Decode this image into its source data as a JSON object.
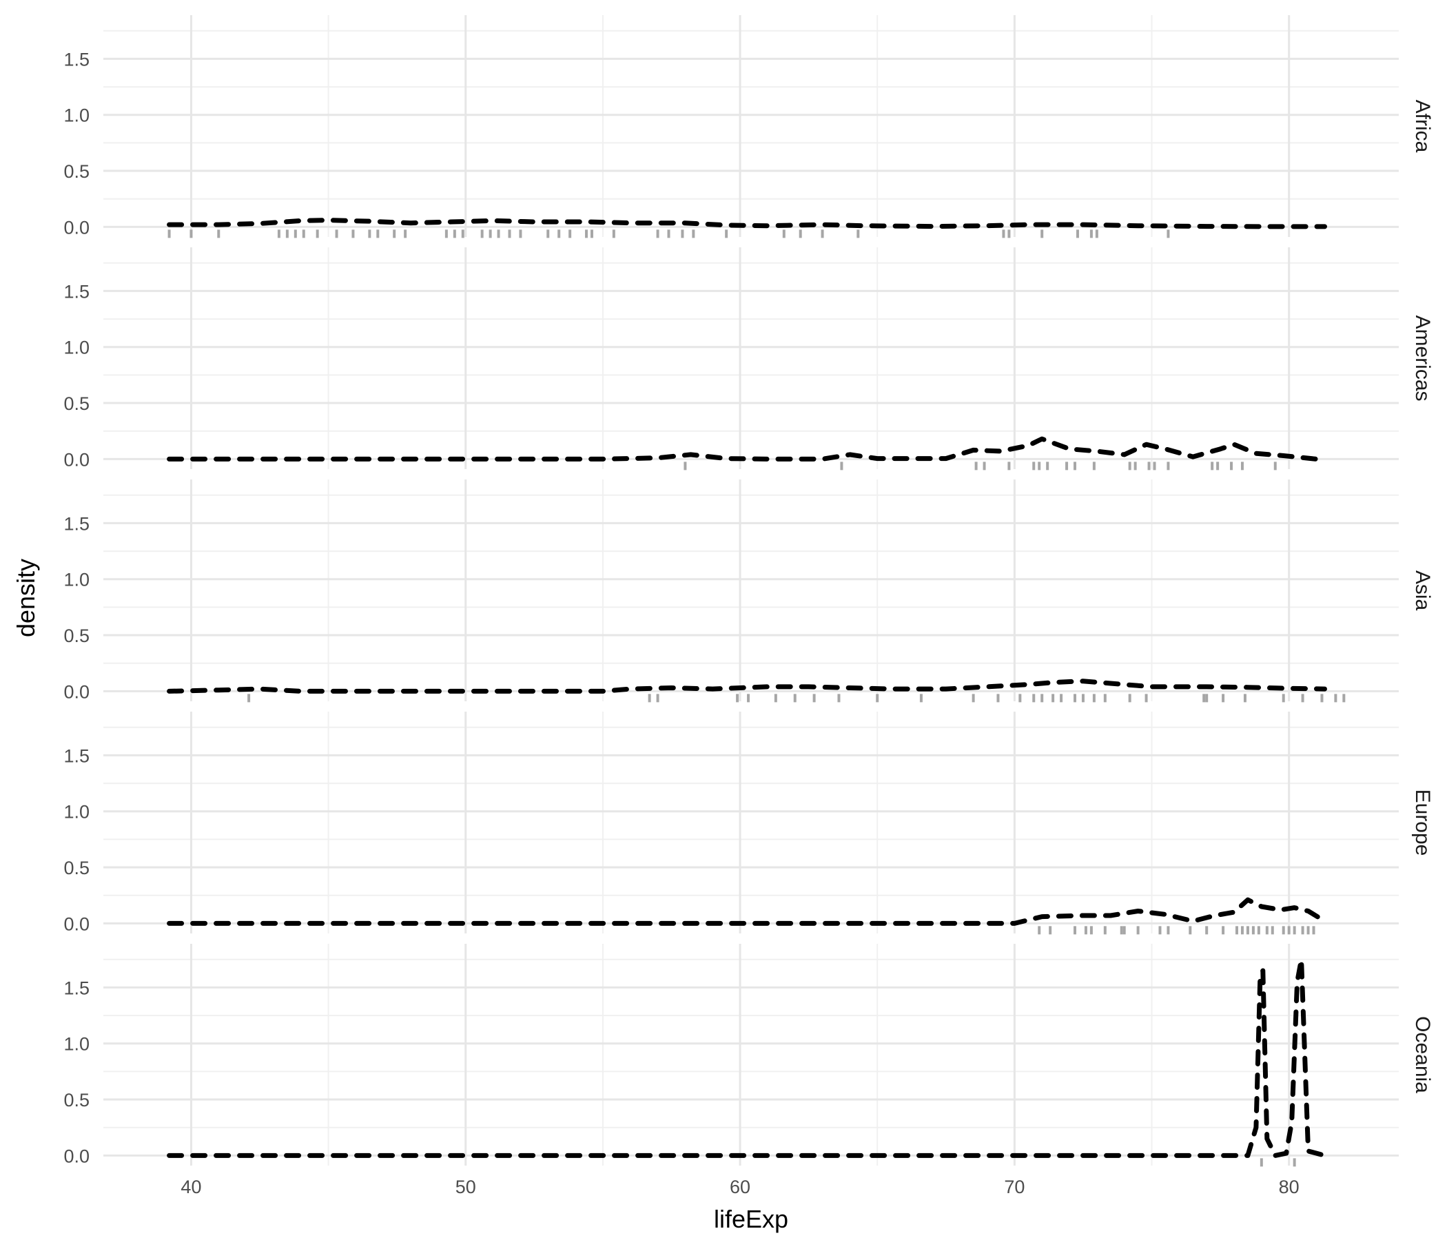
{
  "chart_data": {
    "type": "density",
    "xlabel": "lifeExp",
    "ylabel": "density",
    "xlim": [
      36.8,
      84.0
    ],
    "ylim": [
      -0.09,
      1.89
    ],
    "x_ticks": [
      40,
      50,
      60,
      70,
      80
    ],
    "x_tick_labels": [
      "40",
      "50",
      "60",
      "70",
      "80"
    ],
    "y_ticks": [
      0.0,
      0.5,
      1.0,
      1.5
    ],
    "y_tick_labels": [
      "0.0",
      "0.5",
      "1.0",
      "1.5"
    ],
    "facet_direction": "rows",
    "grid": true,
    "line_style": "dashed",
    "line_color": "#000000",
    "rug_color": "#a6a6a6",
    "panels": [
      {
        "label": "Africa",
        "density": [
          [
            39.2,
            0.02
          ],
          [
            41,
            0.02
          ],
          [
            42.5,
            0.03
          ],
          [
            44,
            0.055
          ],
          [
            45,
            0.06
          ],
          [
            46.5,
            0.05
          ],
          [
            48,
            0.035
          ],
          [
            49.5,
            0.045
          ],
          [
            51,
            0.055
          ],
          [
            52.5,
            0.045
          ],
          [
            54.5,
            0.045
          ],
          [
            56,
            0.035
          ],
          [
            58,
            0.035
          ],
          [
            59.5,
            0.015
          ],
          [
            61,
            0.01
          ],
          [
            63,
            0.02
          ],
          [
            64.5,
            0.01
          ],
          [
            67,
            0.005
          ],
          [
            69,
            0.01
          ],
          [
            70.5,
            0.02
          ],
          [
            72.5,
            0.02
          ],
          [
            74.5,
            0.01
          ],
          [
            77,
            0.005
          ],
          [
            79.5,
            0.003
          ],
          [
            81.3,
            0.003
          ]
        ],
        "rug": [
          39.2,
          40.0,
          41.0,
          43.2,
          43.5,
          43.8,
          44.1,
          44.6,
          45.3,
          45.9,
          46.5,
          46.8,
          47.4,
          47.8,
          49.3,
          49.6,
          49.9,
          50.6,
          50.9,
          51.2,
          51.6,
          52.0,
          53.0,
          53.4,
          53.8,
          54.4,
          54.6,
          55.4,
          57.0,
          57.4,
          57.9,
          58.3,
          59.5,
          61.6,
          62.2,
          63.0,
          64.3,
          69.6,
          69.8,
          71.0,
          72.3,
          72.8,
          73.0,
          75.6
        ]
      },
      {
        "label": "Americas",
        "density": [
          [
            39.2,
            0.0
          ],
          [
            46,
            0.0
          ],
          [
            55,
            0.0
          ],
          [
            57,
            0.01
          ],
          [
            58.2,
            0.04
          ],
          [
            59.5,
            0.005
          ],
          [
            61,
            0.0
          ],
          [
            63,
            0.0
          ],
          [
            64,
            0.04
          ],
          [
            65,
            0.005
          ],
          [
            67.5,
            0.005
          ],
          [
            68.5,
            0.08
          ],
          [
            69.5,
            0.07
          ],
          [
            70.5,
            0.12
          ],
          [
            71,
            0.18
          ],
          [
            72,
            0.09
          ],
          [
            73,
            0.07
          ],
          [
            74,
            0.04
          ],
          [
            74.8,
            0.13
          ],
          [
            75.5,
            0.09
          ],
          [
            76.5,
            0.02
          ],
          [
            77.5,
            0.09
          ],
          [
            78,
            0.13
          ],
          [
            78.8,
            0.05
          ],
          [
            79.8,
            0.03
          ],
          [
            81,
            0.0
          ],
          [
            81.3,
            0.0
          ]
        ],
        "rug": [
          58.0,
          63.7,
          68.6,
          68.9,
          69.8,
          70.7,
          70.9,
          71.2,
          71.9,
          72.2,
          72.9,
          74.2,
          74.4,
          74.9,
          75.1,
          75.6,
          77.2,
          77.4,
          77.9,
          78.3,
          79.5
        ]
      },
      {
        "label": "Asia",
        "density": [
          [
            39.2,
            0.0
          ],
          [
            41,
            0.01
          ],
          [
            42.5,
            0.02
          ],
          [
            44,
            0.0
          ],
          [
            50,
            0.0
          ],
          [
            55,
            0.0
          ],
          [
            56,
            0.02
          ],
          [
            57.5,
            0.03
          ],
          [
            59,
            0.02
          ],
          [
            60,
            0.03
          ],
          [
            61,
            0.04
          ],
          [
            62.5,
            0.04
          ],
          [
            64,
            0.03
          ],
          [
            65.5,
            0.02
          ],
          [
            67.5,
            0.02
          ],
          [
            69,
            0.04
          ],
          [
            70.5,
            0.06
          ],
          [
            71.5,
            0.08
          ],
          [
            72.5,
            0.09
          ],
          [
            73.5,
            0.07
          ],
          [
            75,
            0.04
          ],
          [
            77,
            0.04
          ],
          [
            78.5,
            0.035
          ],
          [
            80,
            0.025
          ],
          [
            81.3,
            0.02
          ]
        ],
        "rug": [
          42.1,
          56.7,
          57.0,
          59.9,
          60.3,
          61.3,
          62.0,
          62.7,
          63.6,
          65.0,
          66.6,
          68.5,
          69.4,
          70.2,
          70.7,
          71.0,
          71.4,
          71.7,
          72.2,
          72.5,
          72.9,
          73.3,
          74.2,
          74.8,
          76.9,
          77.0,
          77.6,
          78.4,
          79.8,
          80.5,
          81.2,
          81.7,
          82.0
        ]
      },
      {
        "label": "Europe",
        "density": [
          [
            39.2,
            0.0
          ],
          [
            50,
            0.0
          ],
          [
            60,
            0.0
          ],
          [
            68,
            0.0
          ],
          [
            70,
            0.0
          ],
          [
            71,
            0.06
          ],
          [
            72.5,
            0.07
          ],
          [
            73.5,
            0.07
          ],
          [
            74.5,
            0.11
          ],
          [
            75.5,
            0.08
          ],
          [
            76.5,
            0.02
          ],
          [
            77.3,
            0.07
          ],
          [
            78,
            0.1
          ],
          [
            78.5,
            0.21
          ],
          [
            79,
            0.15
          ],
          [
            79.7,
            0.12
          ],
          [
            80.2,
            0.14
          ],
          [
            80.7,
            0.11
          ],
          [
            81.3,
            0.02
          ]
        ],
        "rug": [
          70.9,
          71.3,
          72.2,
          72.6,
          72.8,
          73.3,
          73.9,
          74.0,
          74.5,
          75.3,
          75.6,
          76.4,
          77.0,
          77.6,
          78.1,
          78.3,
          78.5,
          78.7,
          78.9,
          79.2,
          79.4,
          79.8,
          80.0,
          80.2,
          80.5,
          80.7,
          80.9
        ]
      },
      {
        "label": "Oceania",
        "density": [
          [
            39.2,
            0.0
          ],
          [
            60,
            0.0
          ],
          [
            70,
            0.0
          ],
          [
            78.5,
            0.0
          ],
          [
            78.8,
            0.25
          ],
          [
            78.95,
            1.6
          ],
          [
            79.05,
            1.65
          ],
          [
            79.2,
            0.15
          ],
          [
            79.5,
            0.0
          ],
          [
            79.9,
            0.02
          ],
          [
            80.1,
            0.3
          ],
          [
            80.3,
            1.55
          ],
          [
            80.45,
            1.75
          ],
          [
            80.7,
            0.04
          ],
          [
            81.3,
            0.0
          ]
        ],
        "rug": [
          79.0,
          80.2
        ]
      }
    ]
  }
}
